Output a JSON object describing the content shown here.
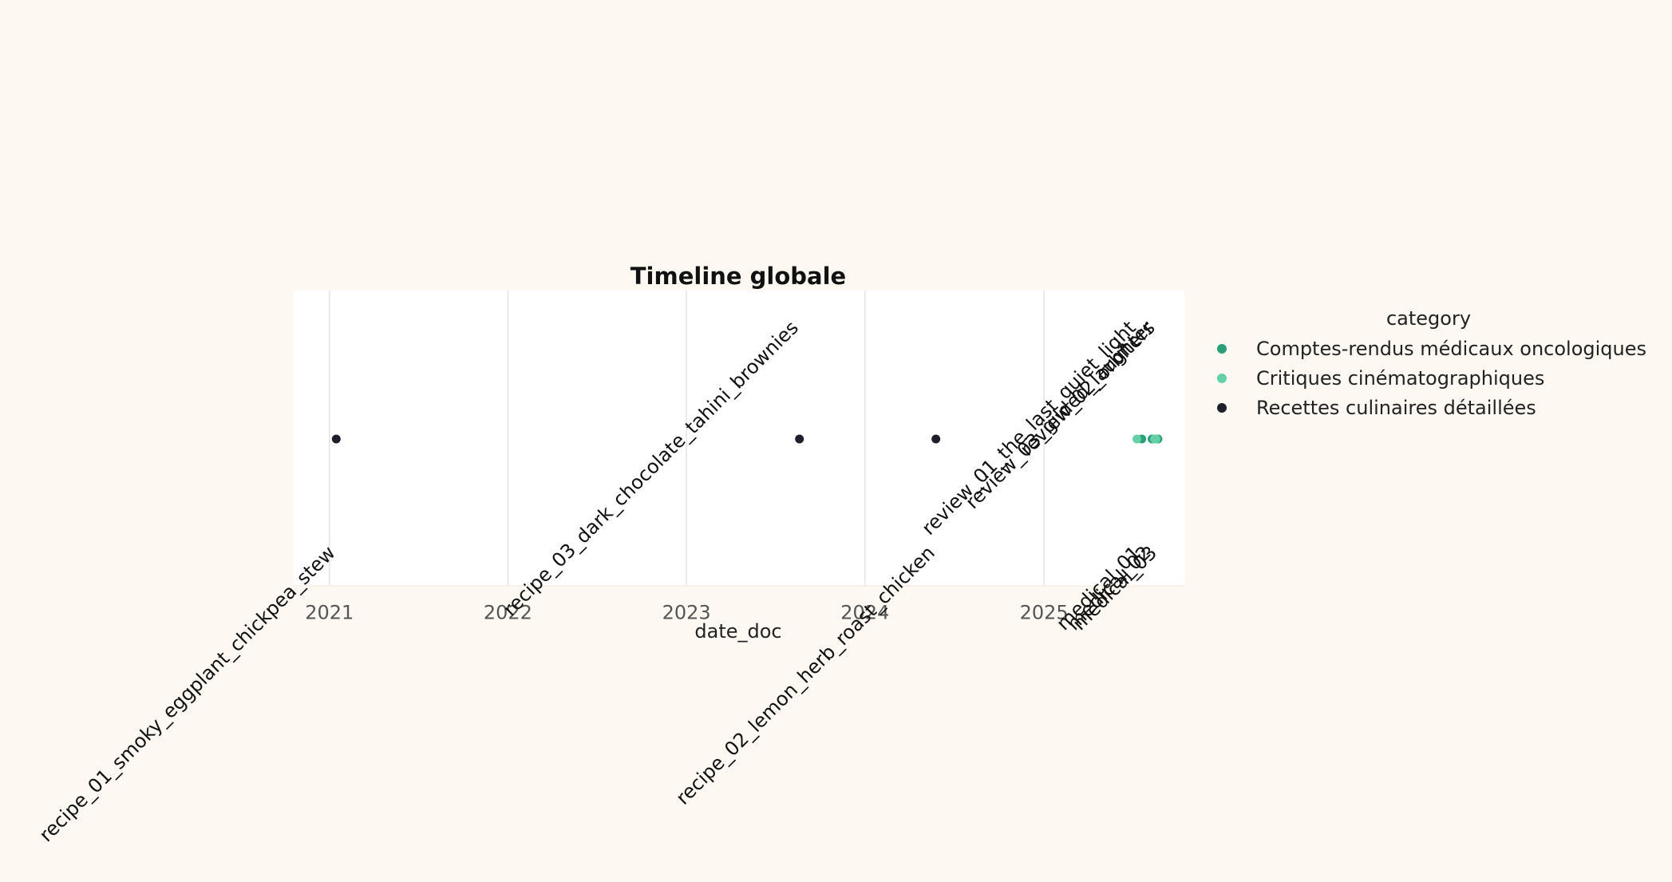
{
  "chart_data": {
    "type": "scatter",
    "title": "Timeline globale",
    "xlabel": "date_doc",
    "ylabel": "",
    "x_axis_type": "date",
    "xlim": [
      "2020-10-20",
      "2025-10-15"
    ],
    "xticks": [
      "2021",
      "2022",
      "2023",
      "2024",
      "2025"
    ],
    "grid": "vertical",
    "legend": {
      "title": "category",
      "placement": "right",
      "entries": [
        "Comptes-rendus médicaux oncologiques",
        "Critiques cinématographiques",
        "Recettes culinaires détaillées"
      ]
    },
    "colors": {
      "Comptes-rendus médicaux oncologiques": "#2a9f78",
      "Critiques cinématographiques": "#64d0a5",
      "Recettes culinaires détaillées": "#1f1f2b",
      "background": "#fdf9f2",
      "plot_background": "#ffffff",
      "grid": "#e4e4e4"
    },
    "series": [
      {
        "name": "Comptes-rendus médicaux oncologiques",
        "points": [
          {
            "x": "2025-07-20",
            "label": "medical_01",
            "label_pos": "below"
          },
          {
            "x": "2025-08-10",
            "label": "medical_02",
            "label_pos": "below"
          },
          {
            "x": "2025-08-22",
            "label": "medical_03",
            "label_pos": "below"
          }
        ]
      },
      {
        "name": "Critiques cinématographiques",
        "points": [
          {
            "x": "2025-07-10",
            "label": "review_01_the_last_quiet_light",
            "label_pos": "above"
          },
          {
            "x": "2025-08-15",
            "label": "review_03_gilded_laughter",
            "label_pos": "above"
          },
          {
            "x": "2025-08-18",
            "label": "review_02_orbiters",
            "label_pos": "above"
          }
        ]
      },
      {
        "name": "Recettes culinaires détaillées",
        "points": [
          {
            "x": "2021-01-15",
            "label": "recipe_01_smoky_eggplant_chickpea_stew",
            "label_pos": "below"
          },
          {
            "x": "2023-08-20",
            "label": "recipe_03_dark_chocolate_tahini_brownies",
            "label_pos": "above"
          },
          {
            "x": "2024-05-25",
            "label": "recipe_02_lemon_herb_roast_chicken",
            "label_pos": "below"
          }
        ]
      }
    ]
  }
}
